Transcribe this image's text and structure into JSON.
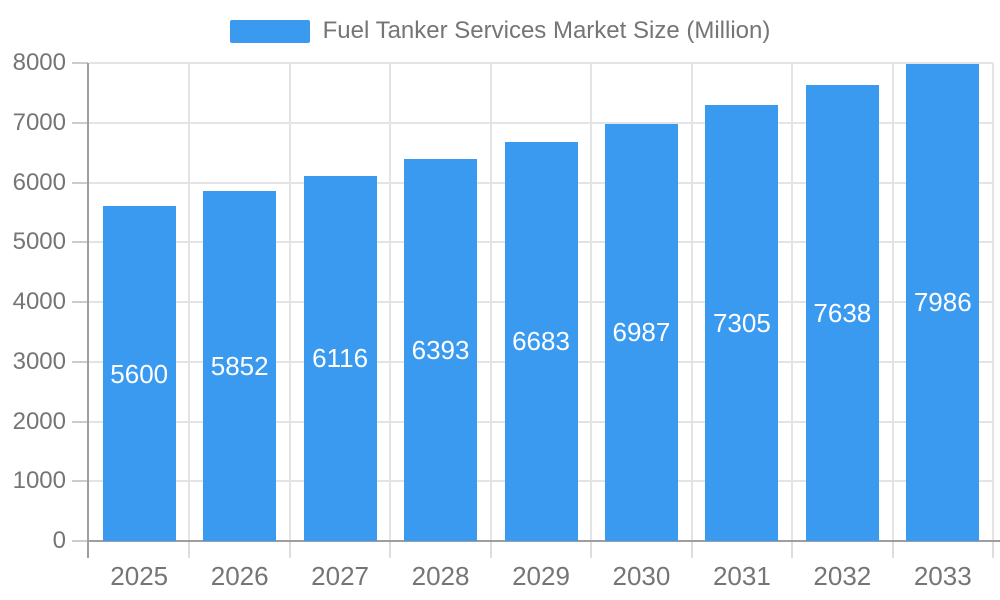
{
  "legend": {
    "label": "Fuel Tanker Services Market Size (Million)"
  },
  "colors": {
    "bar": "#3A9AF0",
    "grid": "#e4e4e4",
    "axis": "#9e9e9e",
    "tick": "#cccccc",
    "xtick": "#dddddd",
    "text": "#757575",
    "bar_label_text": "#ffffff",
    "background": "#ffffff"
  },
  "chart_data": {
    "type": "bar",
    "title": "Fuel Tanker Services Market Size (Million)",
    "series_name": "Fuel Tanker Services Market Size (Million)",
    "categories": [
      "2025",
      "2026",
      "2027",
      "2028",
      "2029",
      "2030",
      "2031",
      "2032",
      "2033"
    ],
    "values": [
      5600,
      5852,
      6116,
      6393,
      6683,
      6987,
      7305,
      7638,
      7986
    ],
    "xlabel": "",
    "ylabel": "",
    "ylim": [
      0,
      8000
    ],
    "ytick_step": 1000,
    "ytick_labels": [
      "0",
      "1000",
      "2000",
      "3000",
      "4000",
      "5000",
      "6000",
      "7000",
      "8000"
    ],
    "grid": true,
    "legend_position": "top",
    "bar_value_labels": "inside-center"
  }
}
